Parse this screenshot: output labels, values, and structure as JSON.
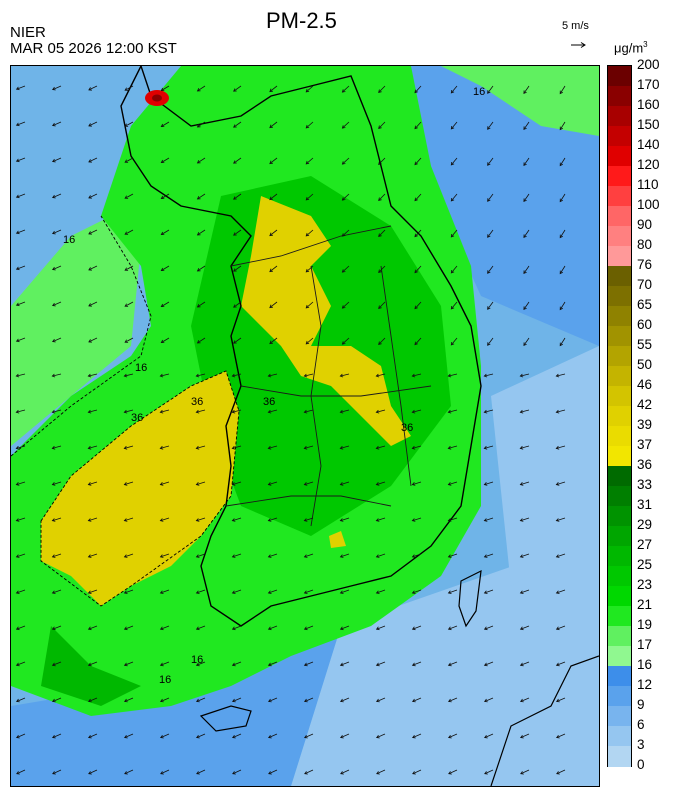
{
  "header": {
    "agency": "NIER",
    "timestamp": "MAR 05 2026 12:00 KST",
    "title": "PM-2.5",
    "wind_scale": "5 m/s",
    "unit_base": "μg/m",
    "unit_exp": "3"
  },
  "colorbar": {
    "labels": [
      "200",
      "170",
      "160",
      "150",
      "140",
      "120",
      "110",
      "100",
      "90",
      "80",
      "76",
      "70",
      "65",
      "60",
      "55",
      "50",
      "46",
      "42",
      "39",
      "37",
      "36",
      "33",
      "31",
      "29",
      "27",
      "25",
      "23",
      "21",
      "19",
      "17",
      "16",
      "12",
      "9",
      "6",
      "3",
      "0"
    ],
    "colors": [
      "#6b0000",
      "#8a0000",
      "#a80000",
      "#c40000",
      "#e00000",
      "#ff1a1a",
      "#ff4040",
      "#ff6666",
      "#ff8080",
      "#ff9999",
      "#6b6000",
      "#7d7000",
      "#8f8200",
      "#a19300",
      "#b3a400",
      "#c4b400",
      "#d3c400",
      "#e0d100",
      "#eadc00",
      "#f2e600",
      "#006b00",
      "#007f00",
      "#009300",
      "#00a600",
      "#00b800",
      "#00c800",
      "#00d800",
      "#20e820",
      "#60f060",
      "#90f890",
      "#3d8eea",
      "#5aa2ec",
      "#78b4ee",
      "#95c6f0",
      "#b2d6f2"
    ]
  },
  "map": {
    "contour_labels": [
      "16",
      "16",
      "36",
      "36",
      "16",
      "16",
      "16",
      "36",
      "36"
    ]
  }
}
